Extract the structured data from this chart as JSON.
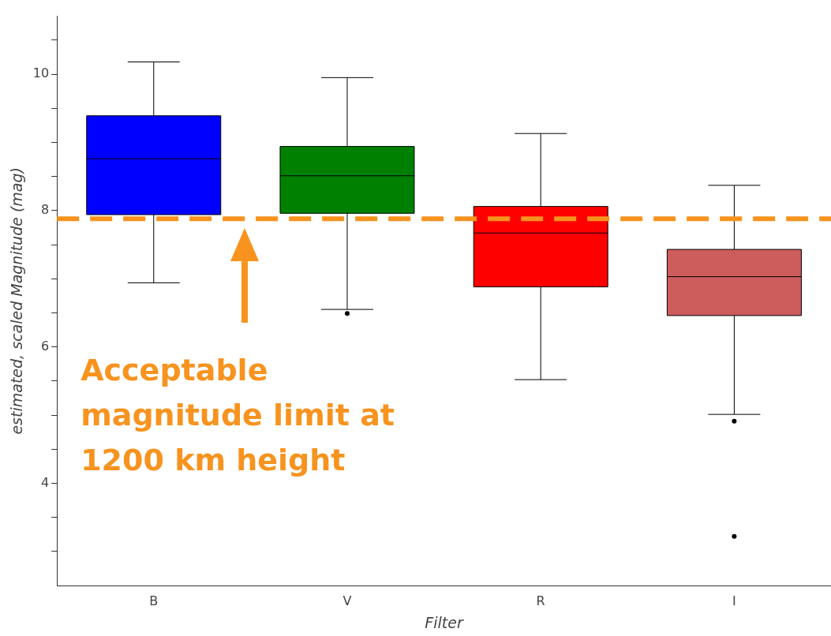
{
  "chart_data": {
    "type": "box",
    "xlabel": "Filter",
    "ylabel": "estimated, scaled Magnitude (mag)",
    "categories": [
      "B",
      "V",
      "R",
      "I"
    ],
    "colors": [
      "#0000ff",
      "#008000",
      "#ff0000",
      "#cd5c5c"
    ],
    "boxes": [
      {
        "low": 6.94,
        "q1": 7.94,
        "median": 8.76,
        "q3": 9.39,
        "high": 10.18
      },
      {
        "low": 6.55,
        "q1": 7.96,
        "median": 8.51,
        "q3": 8.94,
        "high": 9.95,
        "outliers": [
          6.49
        ]
      },
      {
        "low": 5.52,
        "q1": 6.88,
        "median": 7.67,
        "q3": 8.06,
        "high": 9.13
      },
      {
        "low": 5.01,
        "q1": 6.46,
        "median": 7.03,
        "q3": 7.43,
        "high": 8.37,
        "outliers": [
          4.91,
          3.22
        ]
      }
    ],
    "ylim": [
      2.5,
      10.85
    ],
    "yticks": [
      {
        "value": 3,
        "label": null
      },
      {
        "value": 3.5,
        "label": null
      },
      4,
      {
        "value": 4.5,
        "label": null
      },
      {
        "value": 5,
        "label": null
      },
      {
        "value": 5.5,
        "label": null
      },
      6,
      {
        "value": 6.5,
        "label": null
      },
      {
        "value": 7,
        "label": null
      },
      {
        "value": 7.5,
        "label": null
      },
      8,
      {
        "value": 8.5,
        "label": null
      },
      {
        "value": 9,
        "label": null
      },
      {
        "value": 9.5,
        "label": null
      },
      10,
      {
        "value": 10.5,
        "label": null
      }
    ],
    "ref_lines": [
      {
        "axis": "y",
        "value": 7.88,
        "label": "Acceptable magnitude limit at 1200 km height",
        "color": "#f7931e",
        "line_style": "dashed"
      }
    ]
  }
}
